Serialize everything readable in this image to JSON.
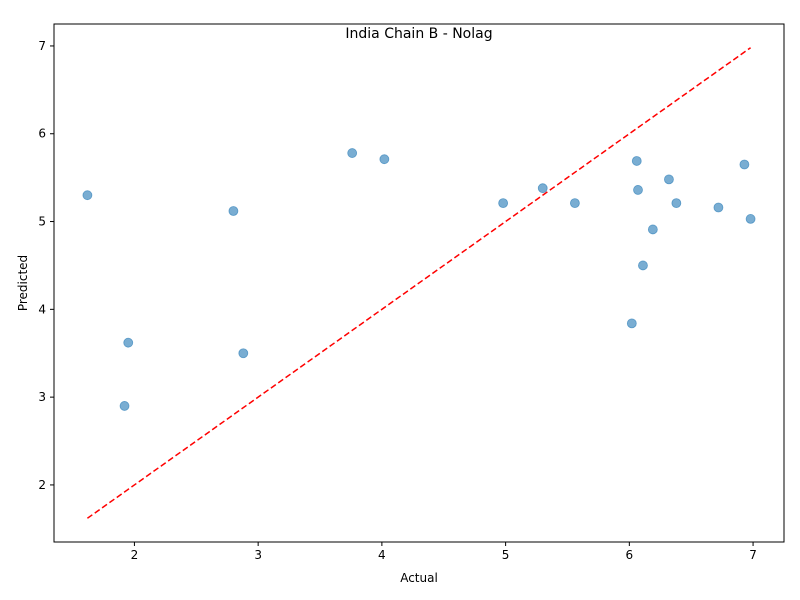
{
  "chart_data": {
    "type": "scatter",
    "title": "India Chain B - Nolag",
    "xlabel": "Actual",
    "ylabel": "Predicted",
    "xlim": [
      1.35,
      7.25
    ],
    "ylim": [
      1.35,
      7.25
    ],
    "xticks": [
      2,
      3,
      4,
      5,
      6,
      7
    ],
    "yticks": [
      2,
      3,
      4,
      5,
      6,
      7
    ],
    "grid": false,
    "point_color": "#1f77b4",
    "point_alpha": 0.6,
    "reference_line": {
      "from": [
        1.62,
        1.62
      ],
      "to": [
        6.98,
        6.98
      ],
      "color": "#ff0000",
      "style": "dashed"
    },
    "points": [
      {
        "x": 1.62,
        "y": 5.3
      },
      {
        "x": 1.92,
        "y": 2.9
      },
      {
        "x": 1.95,
        "y": 3.62
      },
      {
        "x": 2.8,
        "y": 5.12
      },
      {
        "x": 2.88,
        "y": 3.5
      },
      {
        "x": 3.76,
        "y": 5.78
      },
      {
        "x": 4.02,
        "y": 5.71
      },
      {
        "x": 4.98,
        "y": 5.21
      },
      {
        "x": 5.3,
        "y": 5.38
      },
      {
        "x": 5.56,
        "y": 5.21
      },
      {
        "x": 6.02,
        "y": 3.84
      },
      {
        "x": 6.06,
        "y": 5.69
      },
      {
        "x": 6.07,
        "y": 5.36
      },
      {
        "x": 6.11,
        "y": 4.5
      },
      {
        "x": 6.19,
        "y": 4.91
      },
      {
        "x": 6.32,
        "y": 5.48
      },
      {
        "x": 6.38,
        "y": 5.21
      },
      {
        "x": 6.72,
        "y": 5.16
      },
      {
        "x": 6.93,
        "y": 5.65
      },
      {
        "x": 6.98,
        "y": 5.03
      }
    ]
  }
}
